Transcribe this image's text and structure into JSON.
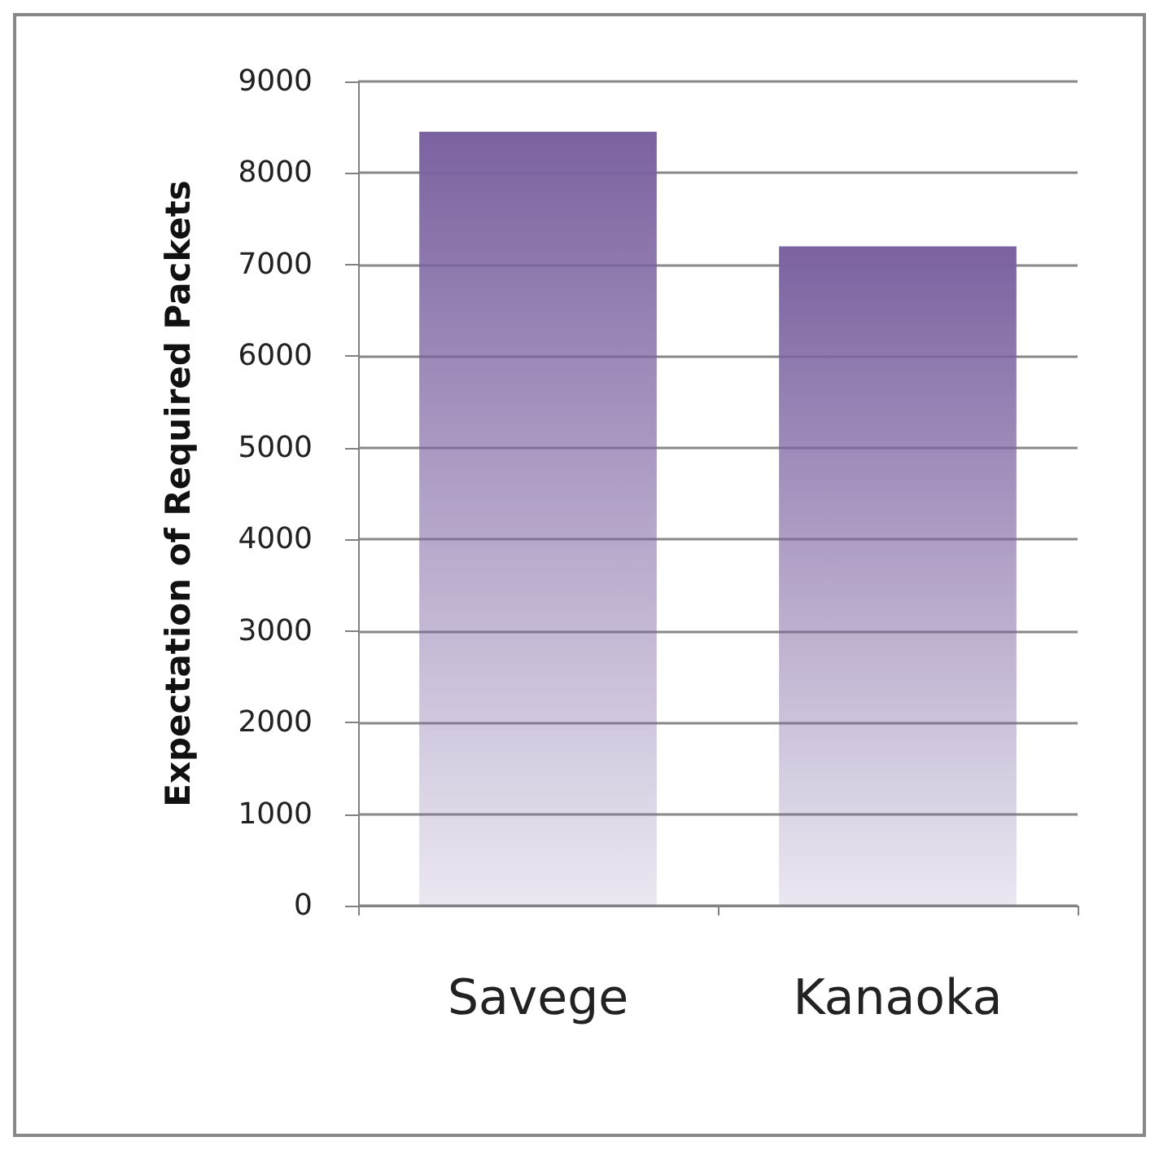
{
  "chart_data": {
    "type": "bar",
    "ylabel": "Expectation of Required Packets",
    "categories": [
      "Savege",
      "Kanaoka"
    ],
    "values": [
      8450,
      7200
    ],
    "color": "#7b62a0",
    "ylim": [
      0,
      9000
    ],
    "yticks": [
      0,
      1000,
      2000,
      3000,
      4000,
      5000,
      6000,
      7000,
      8000,
      9000
    ],
    "grid": "y"
  }
}
